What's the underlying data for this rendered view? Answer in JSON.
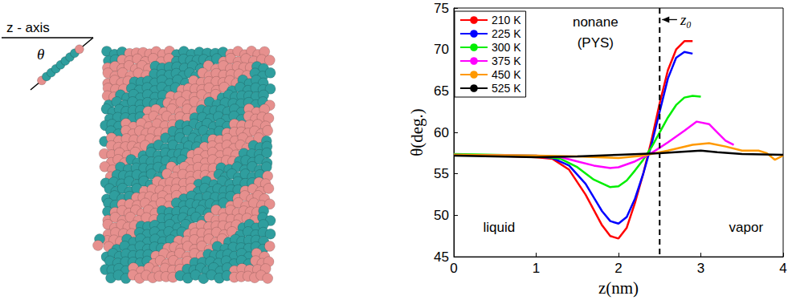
{
  "chart_data": {
    "type": "line",
    "xlabel": "z(nm)",
    "ylabel": "θ(deg.)",
    "xlim": [
      0,
      4
    ],
    "xticks": [
      0,
      1,
      2,
      3,
      4
    ],
    "ylim": [
      45,
      75
    ],
    "yticks": [
      45,
      50,
      55,
      60,
      65,
      70,
      75
    ],
    "grid": false,
    "legend": "upper left",
    "series": [
      {
        "name": "210 K",
        "color": "#ff0000",
        "x": [
          0,
          0.5,
          1.0,
          1.2,
          1.4,
          1.6,
          1.8,
          1.9,
          2.0,
          2.1,
          2.2,
          2.3,
          2.4,
          2.5,
          2.6,
          2.7,
          2.8,
          2.9
        ],
        "values": [
          57.3,
          57.2,
          57.0,
          56.8,
          55.5,
          52.5,
          48.8,
          47.5,
          47.2,
          48.5,
          51.5,
          55.0,
          59.0,
          63.5,
          67.5,
          70.0,
          71.0,
          71.0
        ]
      },
      {
        "name": "225 K",
        "color": "#0000ff",
        "x": [
          0,
          1.0,
          1.2,
          1.4,
          1.6,
          1.8,
          1.9,
          2.0,
          2.1,
          2.2,
          2.3,
          2.4,
          2.5,
          2.6,
          2.7,
          2.8,
          2.9
        ],
        "values": [
          57.3,
          57.1,
          56.9,
          56.0,
          53.8,
          50.5,
          49.3,
          49.0,
          49.8,
          52.0,
          55.0,
          58.5,
          62.5,
          66.5,
          69.0,
          69.7,
          69.5
        ]
      },
      {
        "name": "300 K",
        "color": "#00ee00",
        "x": [
          0,
          1.0,
          1.3,
          1.5,
          1.7,
          1.9,
          2.0,
          2.1,
          2.2,
          2.3,
          2.4,
          2.5,
          2.6,
          2.7,
          2.8,
          2.9,
          3.0
        ],
        "values": [
          57.4,
          57.2,
          56.8,
          55.8,
          54.3,
          53.4,
          53.5,
          54.2,
          55.4,
          56.7,
          58.2,
          60.0,
          61.8,
          63.3,
          64.2,
          64.4,
          64.3
        ]
      },
      {
        "name": "375 K",
        "color": "#ff00ff",
        "x": [
          0,
          1.0,
          1.3,
          1.5,
          1.7,
          1.9,
          2.0,
          2.2,
          2.4,
          2.6,
          2.8,
          2.95,
          3.1,
          3.2,
          3.3,
          3.4
        ],
        "values": [
          57.3,
          57.2,
          57.0,
          56.5,
          56.0,
          55.7,
          55.8,
          56.5,
          57.5,
          58.8,
          60.2,
          61.3,
          61.0,
          60.0,
          59.0,
          58.5
        ]
      },
      {
        "name": "450 K",
        "color": "#ff9900",
        "x": [
          0,
          1.0,
          1.5,
          2.0,
          2.3,
          2.6,
          2.9,
          3.1,
          3.3,
          3.5,
          3.7,
          3.8,
          3.9,
          4.0
        ],
        "values": [
          57.3,
          57.2,
          57.1,
          56.9,
          57.2,
          57.8,
          58.5,
          58.7,
          58.3,
          57.8,
          57.8,
          57.5,
          56.7,
          57.2
        ]
      },
      {
        "name": "525 K",
        "color": "#000000",
        "x": [
          0,
          0.5,
          1.0,
          1.5,
          2.0,
          2.5,
          3.0,
          3.2,
          3.5,
          4.0
        ],
        "values": [
          57.2,
          57.1,
          57.0,
          57.1,
          57.3,
          57.5,
          57.8,
          57.6,
          57.4,
          57.3
        ]
      }
    ],
    "vline": {
      "x": 2.5,
      "label": "z₀",
      "label_at": [
        2.75,
        73.6
      ]
    },
    "annotations": [
      {
        "text": "nonane",
        "x": 1.72,
        "y": 73.3
      },
      {
        "text": "(PYS)",
        "x": 1.72,
        "y": 70.8
      },
      {
        "text": "liquid",
        "x": 0.55,
        "y": 48.5
      },
      {
        "text": "vapor",
        "x": 3.55,
        "y": 48.5
      }
    ]
  },
  "diagram": {
    "axis_label": "z - axis",
    "angle_label": "θ"
  }
}
